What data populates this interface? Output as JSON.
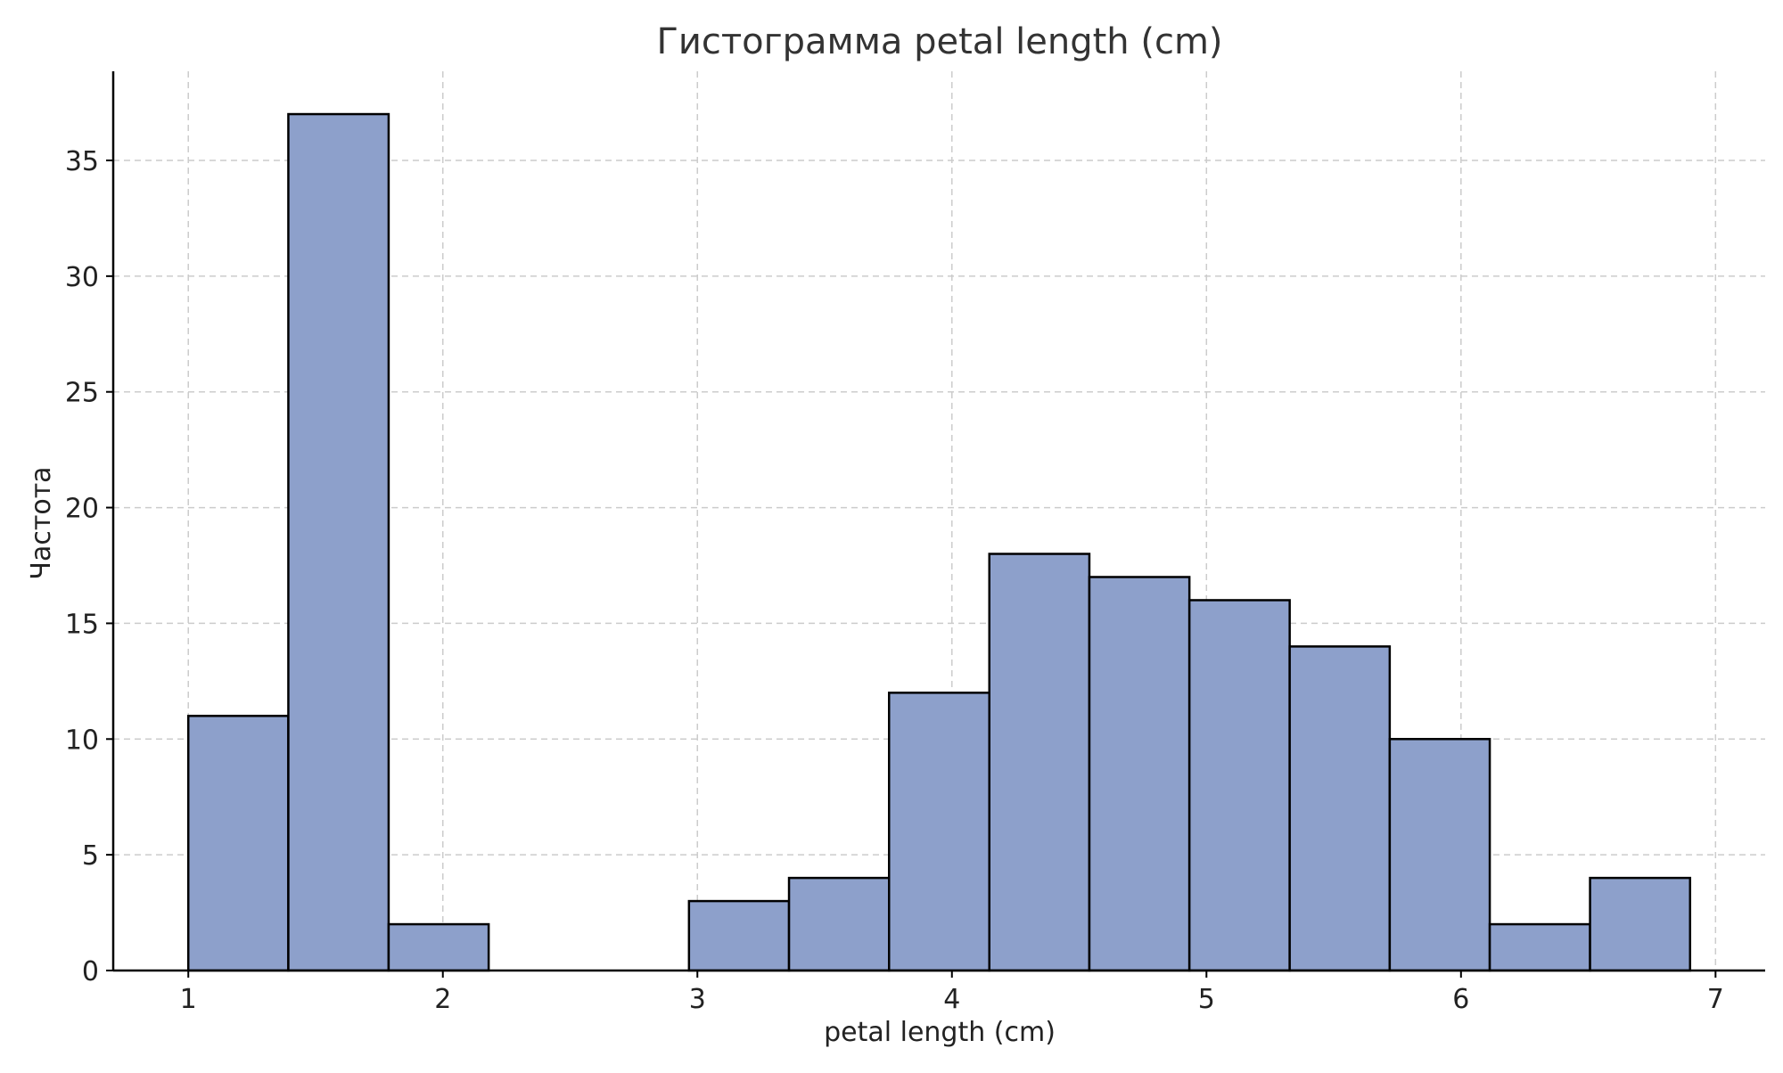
{
  "chart_data": {
    "type": "bar",
    "title": "Гистограмма petal length (cm)",
    "xlabel": "petal length (cm)",
    "ylabel": "Частота",
    "xlim": [
      0.705,
      7.195
    ],
    "ylim": [
      0,
      38.85
    ],
    "xticks": [
      1,
      2,
      3,
      4,
      5,
      6,
      7
    ],
    "yticks": [
      0,
      5,
      10,
      15,
      20,
      25,
      30,
      35
    ],
    "grid": true,
    "bar_color": "#8da0cb",
    "edge_color": "#000000",
    "bins": [
      {
        "x0": 1.0,
        "x1": 1.393,
        "value": 11
      },
      {
        "x0": 1.393,
        "x1": 1.787,
        "value": 37
      },
      {
        "x0": 1.787,
        "x1": 2.18,
        "value": 2
      },
      {
        "x0": 2.18,
        "x1": 2.573,
        "value": 0
      },
      {
        "x0": 2.573,
        "x1": 2.967,
        "value": 0
      },
      {
        "x0": 2.967,
        "x1": 3.36,
        "value": 3
      },
      {
        "x0": 3.36,
        "x1": 3.753,
        "value": 4
      },
      {
        "x0": 3.753,
        "x1": 4.147,
        "value": 12
      },
      {
        "x0": 4.147,
        "x1": 4.54,
        "value": 18
      },
      {
        "x0": 4.54,
        "x1": 4.933,
        "value": 17
      },
      {
        "x0": 4.933,
        "x1": 5.327,
        "value": 16
      },
      {
        "x0": 5.327,
        "x1": 5.72,
        "value": 14
      },
      {
        "x0": 5.72,
        "x1": 6.113,
        "value": 10
      },
      {
        "x0": 6.113,
        "x1": 6.507,
        "value": 2
      },
      {
        "x0": 6.507,
        "x1": 6.9,
        "value": 4
      }
    ]
  }
}
